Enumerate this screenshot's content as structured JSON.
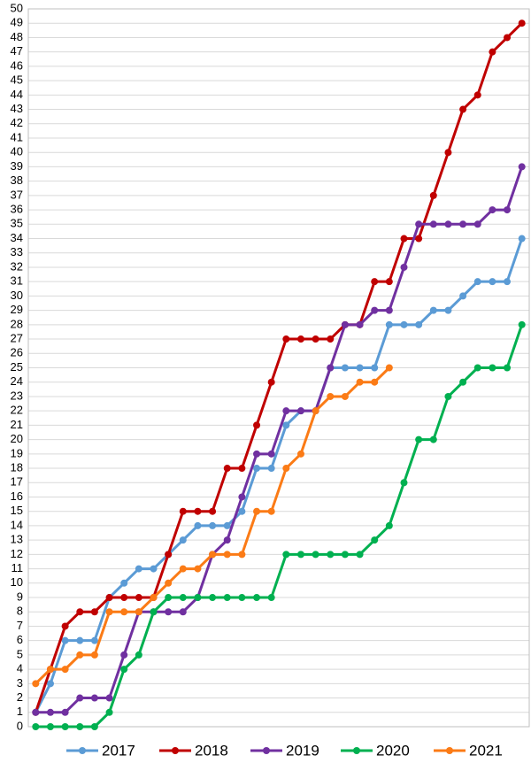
{
  "chart_data": {
    "type": "line",
    "categories": [
      null,
      null,
      null,
      null,
      null,
      null,
      null,
      null,
      null,
      null,
      null,
      null,
      null,
      null,
      null,
      null,
      null,
      null,
      null,
      null,
      null,
      null,
      null,
      null,
      null,
      null,
      null,
      null,
      null,
      null,
      null,
      null,
      null,
      null
    ],
    "series": [
      {
        "name": "2017",
        "color": "#5b9bd5",
        "values": [
          1,
          3,
          6,
          6,
          6,
          9,
          10,
          11,
          11,
          12,
          13,
          14,
          14,
          14,
          15,
          18,
          18,
          21,
          22,
          22,
          25,
          25,
          25,
          25,
          28,
          28,
          28,
          29,
          29,
          30,
          31,
          31,
          31,
          34
        ]
      },
      {
        "name": "2018",
        "color": "#c00000",
        "values": [
          1,
          4,
          7,
          8,
          8,
          9,
          9,
          9,
          9,
          12,
          15,
          15,
          15,
          18,
          18,
          21,
          24,
          27,
          27,
          27,
          27,
          28,
          28,
          31,
          31,
          34,
          34,
          37,
          40,
          43,
          44,
          47,
          48,
          49
        ]
      },
      {
        "name": "2019",
        "color": "#7030a0",
        "values": [
          1,
          1,
          1,
          2,
          2,
          2,
          5,
          8,
          8,
          8,
          8,
          9,
          12,
          13,
          16,
          19,
          19,
          22,
          22,
          22,
          25,
          28,
          28,
          29,
          29,
          32,
          35,
          35,
          35,
          35,
          35,
          36,
          36,
          39
        ]
      },
      {
        "name": "2020",
        "color": "#00b050",
        "values": [
          0,
          0,
          0,
          0,
          0,
          1,
          4,
          5,
          8,
          9,
          9,
          9,
          9,
          9,
          9,
          9,
          9,
          12,
          12,
          12,
          12,
          12,
          12,
          13,
          14,
          17,
          20,
          20,
          23,
          24,
          25,
          25,
          25,
          28
        ]
      },
      {
        "name": "2021",
        "color": "#fb7b16",
        "values": [
          3,
          4,
          4,
          5,
          5,
          8,
          8,
          8,
          9,
          10,
          11,
          11,
          12,
          12,
          12,
          15,
          15,
          18,
          19,
          22,
          23,
          23,
          24,
          24,
          25,
          null,
          null,
          null,
          null,
          null,
          null,
          null,
          null,
          null
        ]
      }
    ],
    "ylim": [
      0,
      50
    ],
    "yticks": [
      0,
      1,
      2,
      3,
      4,
      5,
      6,
      7,
      8,
      9,
      10,
      11,
      12,
      13,
      14,
      15,
      16,
      17,
      18,
      19,
      20,
      21,
      22,
      23,
      24,
      25,
      26,
      27,
      28,
      29,
      30,
      31,
      32,
      33,
      34,
      35,
      36,
      37,
      38,
      39,
      40,
      41,
      42,
      43,
      44,
      45,
      46,
      47,
      48,
      49,
      50
    ],
    "grid": true,
    "legend": "bottom"
  }
}
